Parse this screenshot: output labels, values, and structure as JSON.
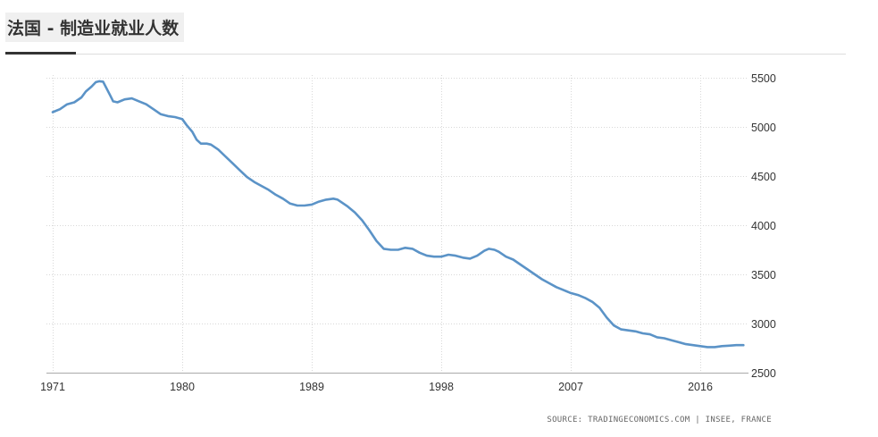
{
  "page": {
    "title": "法国 - 制造业就业人数"
  },
  "chart_data": {
    "type": "line",
    "title": "法国 - 制造业就业人数",
    "source": "SOURCE: TRADINGECONOMICS.COM | INSEE, FRANCE",
    "xlabel": "",
    "ylabel": "",
    "xlim": [
      1971,
      2019
    ],
    "ylim": [
      2500,
      5500
    ],
    "x_ticks": [
      "1971",
      "1980",
      "1989",
      "1998",
      "2007",
      "2016"
    ],
    "y_ticks": [
      "5500",
      "5000",
      "4500",
      "4000",
      "3500",
      "3000",
      "2500"
    ],
    "grid": true,
    "color": "#5b93c7",
    "series": [
      {
        "name": "制造业就业人数",
        "x": [
          1971.0,
          1971.5,
          1972.0,
          1972.5,
          1973.0,
          1973.3,
          1973.7,
          1974.0,
          1974.25,
          1974.5,
          1975.0,
          1975.2,
          1975.5,
          1976.0,
          1976.5,
          1977.0,
          1977.5,
          1978.0,
          1978.5,
          1979.0,
          1979.5,
          1980.0,
          1980.3,
          1980.7,
          1981.0,
          1981.3,
          1981.7,
          1982.0,
          1982.5,
          1983.0,
          1983.5,
          1984.0,
          1984.5,
          1985.0,
          1985.5,
          1986.0,
          1986.5,
          1987.0,
          1987.5,
          1988.0,
          1988.5,
          1989.0,
          1989.5,
          1990.0,
          1990.5,
          1990.8,
          1991.0,
          1991.5,
          1992.0,
          1992.5,
          1993.0,
          1993.5,
          1994.0,
          1994.5,
          1995.0,
          1995.5,
          1996.0,
          1996.5,
          1997.0,
          1997.5,
          1998.0,
          1998.5,
          1999.0,
          1999.5,
          2000.0,
          2000.5,
          2001.0,
          2001.3,
          2001.7,
          2002.0,
          2002.5,
          2003.0,
          2003.5,
          2004.0,
          2004.5,
          2005.0,
          2005.5,
          2006.0,
          2006.5,
          2007.0,
          2007.5,
          2008.0,
          2008.5,
          2009.0,
          2009.5,
          2010.0,
          2010.5,
          2011.0,
          2011.5,
          2012.0,
          2012.5,
          2013.0,
          2013.5,
          2014.0,
          2014.5,
          2015.0,
          2015.5,
          2016.0,
          2016.5,
          2017.0,
          2017.5,
          2018.0,
          2018.5,
          2019.0
        ],
        "values": [
          5150,
          5180,
          5230,
          5250,
          5300,
          5360,
          5410,
          5455,
          5465,
          5460,
          5320,
          5260,
          5250,
          5280,
          5290,
          5260,
          5230,
          5180,
          5130,
          5110,
          5100,
          5080,
          5020,
          4950,
          4870,
          4830,
          4830,
          4820,
          4770,
          4700,
          4630,
          4560,
          4490,
          4440,
          4400,
          4360,
          4310,
          4270,
          4220,
          4200,
          4200,
          4210,
          4240,
          4260,
          4270,
          4260,
          4240,
          4190,
          4130,
          4050,
          3950,
          3840,
          3760,
          3750,
          3750,
          3770,
          3760,
          3720,
          3690,
          3680,
          3680,
          3700,
          3690,
          3670,
          3660,
          3690,
          3740,
          3760,
          3750,
          3730,
          3680,
          3650,
          3600,
          3550,
          3500,
          3450,
          3410,
          3370,
          3340,
          3310,
          3290,
          3260,
          3220,
          3160,
          3060,
          2980,
          2940,
          2930,
          2920,
          2900,
          2890,
          2860,
          2850,
          2830,
          2810,
          2790,
          2780,
          2770,
          2760,
          2760,
          2770,
          2775,
          2780,
          2780
        ]
      }
    ]
  }
}
